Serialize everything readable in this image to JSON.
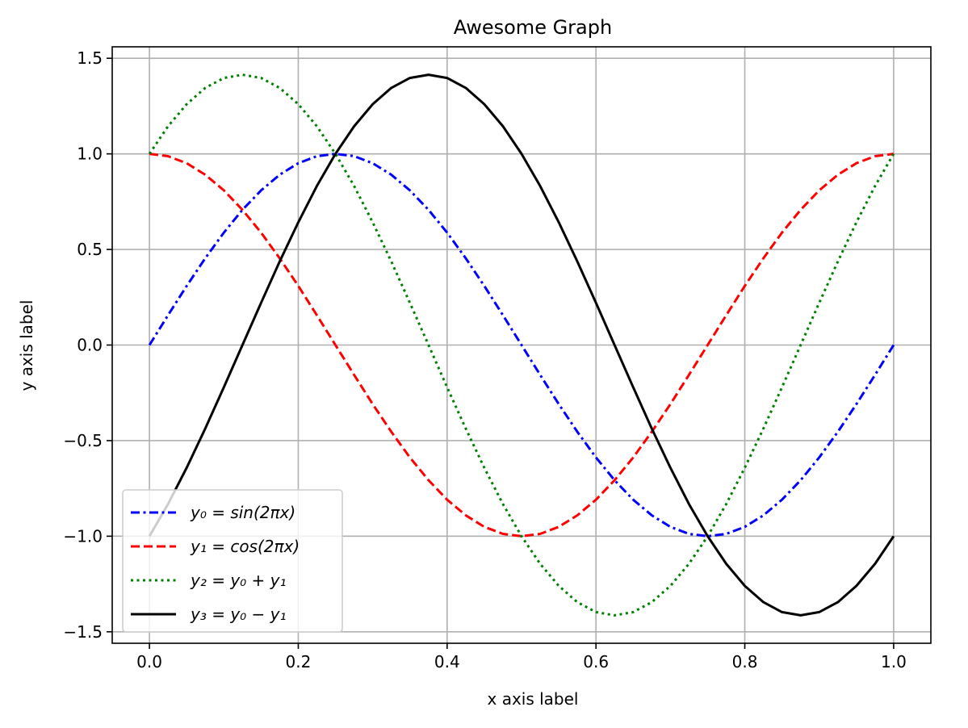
{
  "chart_data": {
    "type": "line",
    "title": "Awesome Graph",
    "xlabel": "x axis label",
    "ylabel": "y axis label",
    "xlim": [
      -0.05,
      1.05
    ],
    "ylim": [
      -1.56,
      1.56
    ],
    "grid": true,
    "legend_position": "lower-left",
    "xticks": [
      "0.0",
      "0.2",
      "0.4",
      "0.6",
      "0.8",
      "1.0"
    ],
    "xtick_values": [
      0,
      0.2,
      0.4,
      0.6,
      0.8,
      1.0
    ],
    "yticks": [
      "−1.5",
      "−1.0",
      "−0.5",
      "0.0",
      "0.5",
      "1.0",
      "1.5"
    ],
    "ytick_values": [
      -1.5,
      -1.0,
      -0.5,
      0,
      0.5,
      1.0,
      1.5
    ],
    "x": [
      0,
      0.025,
      0.05,
      0.075,
      0.1,
      0.125,
      0.15,
      0.175,
      0.2,
      0.225,
      0.25,
      0.275,
      0.3,
      0.325,
      0.35,
      0.375,
      0.4,
      0.425,
      0.45,
      0.475,
      0.5,
      0.525,
      0.55,
      0.575,
      0.6,
      0.625,
      0.65,
      0.675,
      0.7,
      0.725,
      0.75,
      0.775,
      0.8,
      0.825,
      0.85,
      0.875,
      0.9,
      0.925,
      0.95,
      0.975,
      1.0
    ],
    "series": [
      {
        "name": "y₀ = sin(2πx)",
        "color": "#0000ff",
        "dash": "dashdot",
        "values": [
          0,
          0.156,
          0.309,
          0.454,
          0.588,
          0.707,
          0.809,
          0.891,
          0.951,
          0.988,
          1,
          0.988,
          0.951,
          0.891,
          0.809,
          0.707,
          0.588,
          0.454,
          0.309,
          0.156,
          0,
          -0.156,
          -0.309,
          -0.454,
          -0.588,
          -0.707,
          -0.809,
          -0.891,
          -0.951,
          -0.988,
          -1,
          -0.988,
          -0.951,
          -0.891,
          -0.809,
          -0.707,
          -0.588,
          -0.454,
          -0.309,
          -0.156,
          0
        ]
      },
      {
        "name": "y₁ = cos(2πx)",
        "color": "#ff0000",
        "dash": "dashed",
        "values": [
          1,
          0.988,
          0.951,
          0.891,
          0.809,
          0.707,
          0.588,
          0.454,
          0.309,
          0.156,
          0,
          -0.156,
          -0.309,
          -0.454,
          -0.588,
          -0.707,
          -0.809,
          -0.891,
          -0.951,
          -0.988,
          -1,
          -0.988,
          -0.951,
          -0.891,
          -0.809,
          -0.707,
          -0.588,
          -0.454,
          -0.309,
          -0.156,
          0,
          0.156,
          0.309,
          0.454,
          0.588,
          0.707,
          0.809,
          0.891,
          0.951,
          0.988,
          1
        ]
      },
      {
        "name": "y₂ = y₀ + y₁",
        "color": "#008000",
        "dash": "dotted",
        "values": [
          1,
          1.144,
          1.26,
          1.345,
          1.397,
          1.414,
          1.397,
          1.345,
          1.26,
          1.144,
          1,
          0.832,
          0.642,
          0.437,
          0.221,
          0,
          -0.221,
          -0.437,
          -0.642,
          -0.832,
          -1,
          -1.144,
          -1.26,
          -1.345,
          -1.397,
          -1.414,
          -1.397,
          -1.345,
          -1.26,
          -1.144,
          -1,
          -0.832,
          -0.642,
          -0.437,
          -0.221,
          0,
          0.221,
          0.437,
          0.642,
          0.832,
          1
        ]
      },
      {
        "name": "y₃ = y₀ − y₁",
        "color": "#000000",
        "dash": "solid",
        "values": [
          -1,
          -0.832,
          -0.642,
          -0.437,
          -0.221,
          0,
          0.221,
          0.437,
          0.642,
          0.832,
          1,
          1.144,
          1.26,
          1.345,
          1.397,
          1.414,
          1.397,
          1.345,
          1.26,
          1.144,
          1,
          0.832,
          0.642,
          0.437,
          0.221,
          0,
          -0.221,
          -0.437,
          -0.642,
          -0.832,
          -1,
          -1.144,
          -1.26,
          -1.345,
          -1.397,
          -1.414,
          -1.397,
          -1.345,
          -1.26,
          -1.144,
          -1
        ]
      }
    ]
  }
}
